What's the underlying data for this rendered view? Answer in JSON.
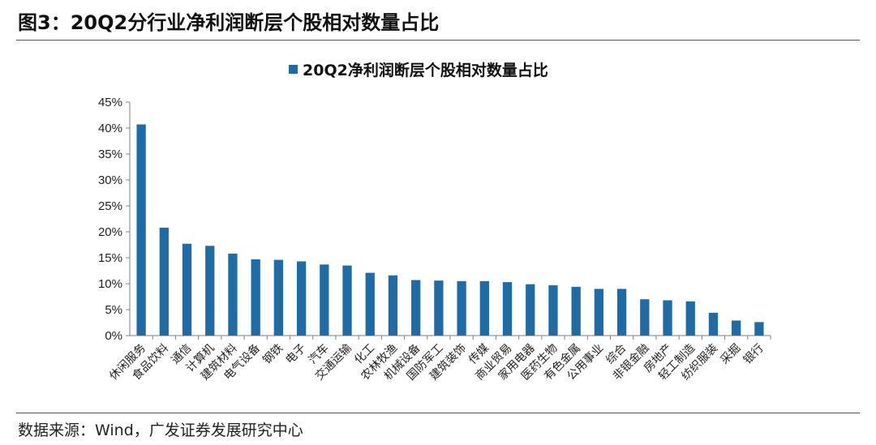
{
  "figure": {
    "title": "图3：20Q2分行业净利润断层个股相对数量占比",
    "source": "数据来源：Wind，广发证券发展研究中心"
  },
  "colors": {
    "bar": "#1f6ba5",
    "axis": "#808080",
    "text": "#222222"
  },
  "chart_data": {
    "type": "bar",
    "categories": [
      "休闲服务",
      "食品饮料",
      "通信",
      "计算机",
      "建筑材料",
      "电气设备",
      "钢铁",
      "电子",
      "汽车",
      "交通运输",
      "化工",
      "农林牧渔",
      "机械设备",
      "国防军工",
      "建筑装饰",
      "传媒",
      "商业贸易",
      "家用电器",
      "医药生物",
      "有色金属",
      "公用事业",
      "综合",
      "非银金融",
      "房地产",
      "轻工制造",
      "纺织服装",
      "采掘",
      "银行"
    ],
    "series": [
      {
        "name": "20Q2净利润断层个股相对数量占比",
        "values": [
          40.7,
          20.8,
          17.7,
          17.3,
          15.8,
          14.7,
          14.6,
          14.3,
          13.7,
          13.5,
          12.1,
          11.6,
          10.7,
          10.6,
          10.5,
          10.5,
          10.3,
          9.9,
          9.7,
          9.4,
          9.0,
          9.0,
          7.0,
          6.8,
          6.6,
          4.4,
          2.9,
          2.6
        ]
      }
    ],
    "ylim": [
      0,
      45
    ],
    "yticks": [
      "0%",
      "5%",
      "10%",
      "15%",
      "20%",
      "25%",
      "30%",
      "35%",
      "40%",
      "45%"
    ],
    "legend": "top-center",
    "grid": false
  }
}
